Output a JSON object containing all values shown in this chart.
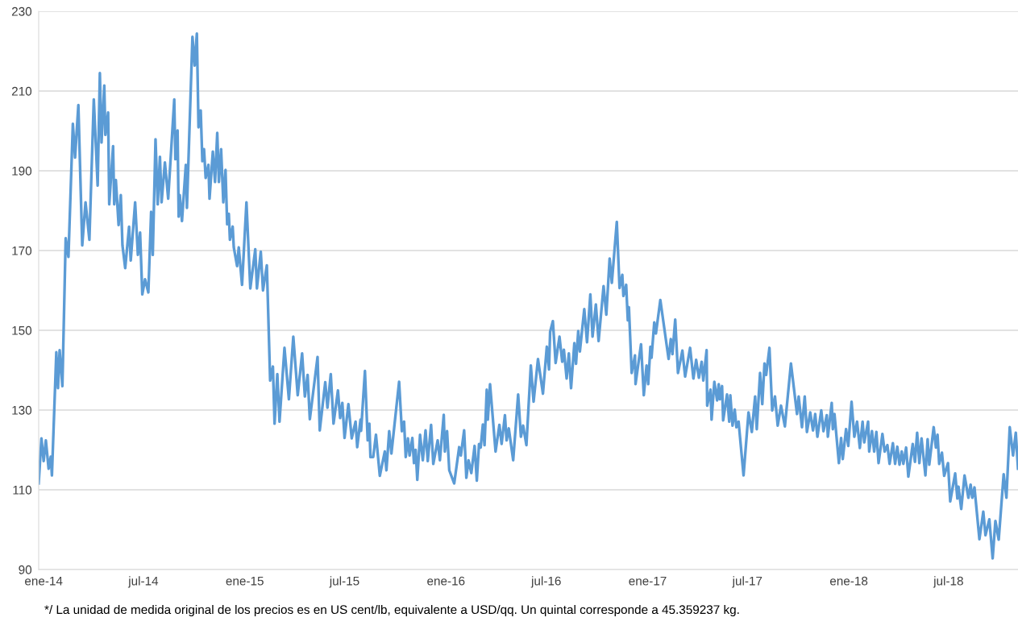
{
  "chart_data": {
    "type": "line",
    "x": [
      "2013-12-23",
      "2013-12-28",
      "2014-01-01",
      "2014-01-05",
      "2014-01-10",
      "2014-01-14",
      "2014-01-16",
      "2014-01-24",
      "2014-01-27",
      "2014-01-30",
      "2014-02-04",
      "2014-02-10",
      "2014-02-15",
      "2014-02-23",
      "2014-02-27",
      "2014-03-05",
      "2014-03-12",
      "2014-03-18",
      "2014-03-25",
      "2014-04-02",
      "2014-04-09",
      "2014-04-13",
      "2014-04-16",
      "2014-04-21",
      "2014-04-23",
      "2014-04-28",
      "2014-04-30",
      "2014-05-07",
      "2014-05-09",
      "2014-05-12",
      "2014-05-17",
      "2014-05-21",
      "2014-05-24",
      "2014-05-29",
      "2014-06-05",
      "2014-06-08",
      "2014-06-16",
      "2014-06-21",
      "2014-06-25",
      "2014-06-29",
      "2014-07-04",
      "2014-07-10",
      "2014-07-15",
      "2014-07-18",
      "2014-07-23",
      "2014-07-27",
      "2014-07-31",
      "2014-08-03",
      "2014-08-09",
      "2014-08-15",
      "2014-08-26",
      "2014-08-28",
      "2014-09-01",
      "2014-09-03",
      "2014-09-05",
      "2014-09-09",
      "2014-09-16",
      "2014-09-18",
      "2014-09-28",
      "2014-10-02",
      "2014-10-06",
      "2014-10-09",
      "2014-10-13",
      "2014-10-16",
      "2014-10-19",
      "2014-10-22",
      "2014-10-27",
      "2014-10-29",
      "2014-11-04",
      "2014-11-08",
      "2014-11-12",
      "2014-11-15",
      "2014-11-19",
      "2014-11-23",
      "2014-11-27",
      "2014-11-30",
      "2014-12-03",
      "2014-12-05",
      "2014-12-10",
      "2014-12-12",
      "2014-12-18",
      "2014-12-21",
      "2014-12-27",
      "2015-01-04",
      "2015-01-11",
      "2015-01-20",
      "2015-01-23",
      "2015-01-30",
      "2015-02-03",
      "2015-02-10",
      "2015-02-16",
      "2015-02-21",
      "2015-02-24",
      "2015-03-01",
      "2015-03-05",
      "2015-03-14",
      "2015-03-22",
      "2015-03-30",
      "2015-04-07",
      "2015-04-15",
      "2015-04-20",
      "2015-04-25",
      "2015-04-29",
      "2015-05-13",
      "2015-05-17",
      "2015-05-27",
      "2015-05-31",
      "2015-06-06",
      "2015-06-11",
      "2015-06-19",
      "2015-06-23",
      "2015-06-27",
      "2015-07-01",
      "2015-07-08",
      "2015-07-14",
      "2015-07-21",
      "2015-07-24",
      "2015-07-30",
      "2015-07-31",
      "2015-08-07",
      "2015-08-12",
      "2015-08-15",
      "2015-08-17",
      "2015-08-22",
      "2015-08-27",
      "2015-09-03",
      "2015-09-12",
      "2015-09-15",
      "2015-09-20",
      "2015-09-24",
      "2015-10-08",
      "2015-10-13",
      "2015-10-17",
      "2015-10-20",
      "2015-10-24",
      "2015-10-27",
      "2015-11-01",
      "2015-11-04",
      "2015-11-07",
      "2015-11-10",
      "2015-11-15",
      "2015-11-20",
      "2015-11-25",
      "2015-11-29",
      "2015-12-05",
      "2015-12-09",
      "2015-12-17",
      "2015-12-21",
      "2015-12-28",
      "2015-12-30",
      "2016-01-03",
      "2016-01-07",
      "2016-01-16",
      "2016-01-25",
      "2016-01-28",
      "2016-02-03",
      "2016-02-07",
      "2016-02-11",
      "2016-02-16",
      "2016-02-22",
      "2016-02-26",
      "2016-03-01",
      "2016-03-04",
      "2016-03-08",
      "2016-03-11",
      "2016-03-15",
      "2016-03-17",
      "2016-03-21",
      "2016-03-31",
      "2016-04-07",
      "2016-04-11",
      "2016-04-17",
      "2016-04-20",
      "2016-04-24",
      "2016-05-02",
      "2016-05-11",
      "2016-05-16",
      "2016-05-20",
      "2016-05-26",
      "2016-06-03",
      "2016-06-08",
      "2016-06-16",
      "2016-06-25",
      "2016-07-02",
      "2016-07-06",
      "2016-07-08",
      "2016-07-13",
      "2016-07-18",
      "2016-07-25",
      "2016-07-30",
      "2016-08-02",
      "2016-08-07",
      "2016-08-11",
      "2016-08-15",
      "2016-08-21",
      "2016-08-24",
      "2016-08-28",
      "2016-08-31",
      "2016-09-08",
      "2016-09-13",
      "2016-09-19",
      "2016-09-23",
      "2016-09-29",
      "2016-10-04",
      "2016-10-13",
      "2016-10-18",
      "2016-10-24",
      "2016-10-28",
      "2016-11-06",
      "2016-11-11",
      "2016-11-16",
      "2016-11-18",
      "2016-11-23",
      "2016-11-26",
      "2016-11-28",
      "2016-12-03",
      "2016-12-09",
      "2016-12-10",
      "2016-12-20",
      "2016-12-25",
      "2016-12-30",
      "2017-01-02",
      "2017-01-06",
      "2017-01-08",
      "2017-01-13",
      "2017-01-16",
      "2017-01-24",
      "2017-02-08",
      "2017-02-12",
      "2017-02-15",
      "2017-02-20",
      "2017-02-25",
      "2017-03-05",
      "2017-03-10",
      "2017-03-19",
      "2017-03-25",
      "2017-03-30",
      "2017-04-04",
      "2017-04-09",
      "2017-04-12",
      "2017-04-18",
      "2017-04-19",
      "2017-04-25",
      "2017-04-27",
      "2017-05-02",
      "2017-05-07",
      "2017-05-10",
      "2017-05-12",
      "2017-05-16",
      "2017-05-18",
      "2017-05-25",
      "2017-05-29",
      "2017-05-31",
      "2017-06-04",
      "2017-06-08",
      "2017-06-11",
      "2017-06-15",
      "2017-06-24",
      "2017-07-03",
      "2017-07-09",
      "2017-07-15",
      "2017-07-18",
      "2017-07-24",
      "2017-07-28",
      "2017-08-01",
      "2017-08-04",
      "2017-08-10",
      "2017-08-15",
      "2017-08-20",
      "2017-08-25",
      "2017-08-31",
      "2017-09-07",
      "2017-09-18",
      "2017-09-29",
      "2017-10-02",
      "2017-10-08",
      "2017-10-13",
      "2017-10-17",
      "2017-10-23",
      "2017-10-28",
      "2017-11-01",
      "2017-11-05",
      "2017-11-12",
      "2017-11-16",
      "2017-11-22",
      "2017-11-24",
      "2017-12-01",
      "2017-12-03",
      "2017-12-06",
      "2017-12-14",
      "2017-12-18",
      "2017-12-21",
      "2017-12-27",
      "2017-12-31",
      "2018-01-06",
      "2018-01-11",
      "2018-01-16",
      "2018-01-21",
      "2018-01-26",
      "2018-01-29",
      "2018-02-05",
      "2018-02-07",
      "2018-02-12",
      "2018-02-16",
      "2018-02-20",
      "2018-02-24",
      "2018-03-03",
      "2018-03-07",
      "2018-03-12",
      "2018-03-16",
      "2018-03-22",
      "2018-03-26",
      "2018-03-30",
      "2018-04-03",
      "2018-04-07",
      "2018-04-10",
      "2018-04-15",
      "2018-04-19",
      "2018-04-27",
      "2018-05-01",
      "2018-05-05",
      "2018-05-09",
      "2018-05-13",
      "2018-05-20",
      "2018-05-24",
      "2018-05-27",
      "2018-06-04",
      "2018-06-08",
      "2018-06-11",
      "2018-06-14",
      "2018-06-19",
      "2018-06-23",
      "2018-06-30",
      "2018-07-04",
      "2018-07-13",
      "2018-07-17",
      "2018-07-19",
      "2018-07-24",
      "2018-07-30",
      "2018-08-06",
      "2018-08-10",
      "2018-08-13",
      "2018-08-17",
      "2018-08-26",
      "2018-09-02",
      "2018-09-06",
      "2018-09-13",
      "2018-09-19",
      "2018-09-24",
      "2018-09-30",
      "2018-10-09",
      "2018-10-14",
      "2018-10-20",
      "2018-10-26",
      "2018-10-31",
      "2018-11-04"
    ],
    "series": [
      {
        "color": "#5b9bd5",
        "values": [
          111.6,
          122.9,
          117.2,
          122.4,
          115.3,
          118.3,
          113.6,
          144.5,
          135.5,
          145.0,
          136.0,
          173.1,
          168.4,
          201.8,
          193.3,
          206.5,
          171.3,
          182.1,
          172.7,
          207.9,
          186.3,
          214.5,
          197.1,
          211.4,
          199.0,
          204.6,
          181.6,
          196.2,
          181.6,
          187.7,
          176.4,
          183.9,
          171.3,
          165.6,
          176.0,
          167.5,
          182.1,
          168.9,
          174.5,
          159.0,
          162.8,
          159.5,
          179.7,
          168.9,
          197.9,
          181.6,
          193.5,
          182.1,
          192.1,
          183.0,
          207.9,
          192.9,
          200.1,
          178.5,
          183.9,
          177.4,
          191.5,
          180.7,
          223.6,
          216.4,
          224.4,
          200.9,
          205.1,
          192.4,
          195.4,
          188.2,
          191.5,
          183.0,
          194.8,
          187.2,
          199.5,
          187.2,
          195.4,
          182.1,
          190.2,
          176.6,
          179.2,
          172.7,
          176.0,
          170.8,
          166.1,
          170.8,
          161.4,
          182.1,
          160.5,
          170.3,
          160.5,
          169.7,
          160.0,
          166.3,
          137.4,
          140.9,
          126.6,
          139.0,
          127.1,
          145.6,
          132.7,
          148.4,
          133.7,
          144.2,
          133.4,
          138.8,
          127.7,
          143.3,
          124.9,
          137.0,
          130.6,
          139.0,
          126.6,
          134.9,
          128.0,
          131.8,
          123.0,
          131.5,
          122.9,
          127.1,
          120.7,
          127.6,
          124.8,
          139.8,
          122.4,
          126.6,
          118.2,
          118.2,
          123.8,
          113.5,
          119.6,
          114.9,
          124.7,
          119.1,
          137.1,
          124.7,
          127.1,
          118.2,
          122.9,
          118.6,
          123.0,
          116.7,
          120.0,
          112.5,
          123.8,
          117.4,
          124.9,
          117.2,
          126.3,
          116.5,
          122.4,
          117.4,
          128.8,
          119.6,
          124.7,
          114.9,
          111.6,
          120.7,
          118.6,
          124.9,
          113.0,
          117.4,
          114.2,
          121.0,
          112.3,
          121.5,
          120.6,
          126.4,
          121.2,
          135.1,
          127.6,
          136.5,
          119.6,
          126.3,
          121.5,
          128.7,
          122.4,
          125.4,
          117.4,
          133.9,
          123.3,
          126.1,
          121.2,
          141.2,
          132.1,
          142.8,
          134.1,
          145.9,
          140.2,
          149.6,
          152.3,
          141.8,
          148.4,
          142.1,
          145.1,
          137.9,
          144.2,
          135.5,
          146.8,
          141.6,
          149.8,
          144.7,
          155.3,
          147.0,
          159.0,
          148.4,
          156.5,
          147.3,
          161.1,
          153.9,
          168.0,
          161.9,
          177.2,
          160.6,
          163.9,
          158.6,
          161.4,
          152.5,
          155.8,
          139.3,
          143.7,
          136.5,
          146.5,
          133.7,
          141.2,
          136.5,
          145.9,
          143.1,
          152.0,
          149.2,
          157.6,
          142.8,
          147.8,
          144.0,
          152.7,
          139.3,
          144.9,
          138.4,
          145.6,
          137.9,
          142.6,
          138.1,
          142.1,
          137.4,
          145.0,
          131.1,
          135.1,
          127.6,
          137.1,
          132.4,
          136.5,
          132.7,
          136.0,
          127.4,
          133.9,
          127.1,
          133.7,
          126.1,
          130.1,
          125.7,
          127.1,
          113.6,
          129.4,
          124.5,
          133.4,
          125.2,
          139.3,
          131.5,
          141.7,
          138.8,
          145.6,
          129.9,
          133.4,
          126.1,
          131.1,
          125.9,
          141.7,
          129.0,
          133.4,
          125.7,
          133.4,
          124.5,
          129.4,
          124.9,
          129.0,
          123.3,
          129.9,
          124.7,
          128.7,
          123.3,
          131.8,
          125.2,
          129.0,
          116.7,
          123.0,
          117.7,
          125.2,
          121.0,
          132.1,
          123.3,
          127.1,
          120.5,
          127.1,
          121.9,
          127.1,
          119.6,
          124.7,
          119.6,
          124.5,
          116.7,
          124.0,
          119.6,
          121.2,
          116.5,
          121.7,
          116.5,
          120.8,
          116.3,
          119.6,
          116.5,
          120.6,
          113.3,
          121.5,
          117.0,
          124.3,
          116.7,
          122.9,
          113.6,
          122.7,
          116.3,
          125.7,
          120.6,
          123.8,
          116.5,
          119.3,
          113.5,
          116.7,
          107.1,
          114.1,
          107.8,
          110.8,
          105.2,
          113.6,
          108.0,
          111.3,
          108.0,
          110.6,
          97.6,
          104.5,
          98.6,
          102.6,
          92.8,
          102.2,
          97.5,
          113.9,
          108.0,
          125.7,
          118.6,
          124.3,
          115.3
        ]
      }
    ],
    "xlim": [
      "2013-12-23",
      "2018-11-04"
    ],
    "xticks": [
      {
        "value": "2014-01-01",
        "label": "ene-14"
      },
      {
        "value": "2014-07-01",
        "label": "jul-14"
      },
      {
        "value": "2015-01-01",
        "label": "ene-15"
      },
      {
        "value": "2015-07-01",
        "label": "jul-15"
      },
      {
        "value": "2016-01-01",
        "label": "ene-16"
      },
      {
        "value": "2016-07-01",
        "label": "jul-16"
      },
      {
        "value": "2017-01-01",
        "label": "ene-17"
      },
      {
        "value": "2017-07-01",
        "label": "jul-17"
      },
      {
        "value": "2018-01-01",
        "label": "ene-18"
      },
      {
        "value": "2018-07-01",
        "label": "jul-18"
      }
    ],
    "ylim": [
      90,
      230
    ],
    "yticks": [
      90,
      110,
      130,
      150,
      170,
      190,
      210,
      230
    ],
    "grid": "y",
    "marker": "none",
    "line_style": "solid",
    "annotations": [
      "*/ La unidad de medida original de los precios es en US cent/lb, equivalente a USD/qq. Un quintal corresponde a 45.359237 kg."
    ]
  }
}
